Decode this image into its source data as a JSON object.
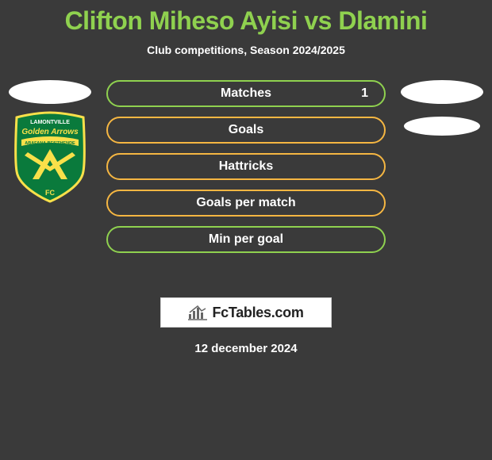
{
  "title": {
    "text": "Clifton Miheso Ayisi vs Dlamini",
    "color": "#8fd14f",
    "fontsize": 32
  },
  "subtitle": "Club competitions, Season 2024/2025",
  "stats": [
    {
      "label": "Matches",
      "border_color": "#8fd14f",
      "value_right": "1"
    },
    {
      "label": "Goals",
      "border_color": "#f5b642",
      "value_right": ""
    },
    {
      "label": "Hattricks",
      "border_color": "#f5b642",
      "value_right": ""
    },
    {
      "label": "Goals per match",
      "border_color": "#f5b642",
      "value_right": ""
    },
    {
      "label": "Min per goal",
      "border_color": "#8fd14f",
      "value_right": ""
    }
  ],
  "left_team_logo": {
    "name": "golden-arrows",
    "shield_fill": "#0a7a3c",
    "shield_stroke": "#f9e04a",
    "chevron_fill": "#f9e04a",
    "banner_fill": "#f9e04a",
    "text_top": "LAMONTVILLE",
    "text_mid": "Golden Arrows",
    "text_banner": "ABAFANA BES'THENDE"
  },
  "fctables": {
    "label": "FcTables.com",
    "bar_colors": [
      "#666666",
      "#666666",
      "#666666",
      "#666666",
      "#666666"
    ]
  },
  "date": "12 december 2024",
  "background_color": "#3a3a3a"
}
